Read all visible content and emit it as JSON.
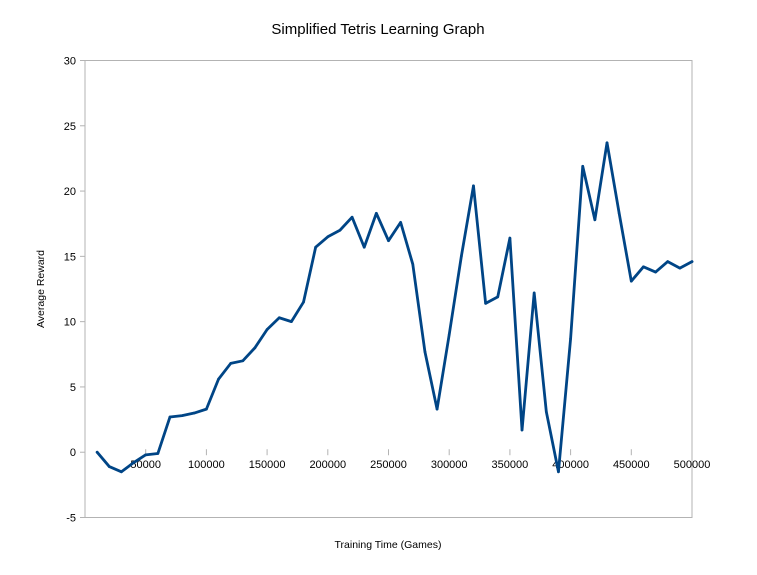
{
  "chart_data": {
    "type": "line",
    "title": "Simplified Tetris Learning Graph",
    "xlabel": "Training Time (Games)",
    "ylabel": "Average Reward",
    "xlim": [
      0,
      500000
    ],
    "ylim": [
      -5,
      30
    ],
    "x_ticks": [
      50000,
      100000,
      150000,
      200000,
      250000,
      300000,
      350000,
      400000,
      450000,
      500000
    ],
    "y_ticks": [
      -5,
      0,
      5,
      10,
      15,
      20,
      25,
      30
    ],
    "grid": false,
    "legend": "none",
    "line_color": "#004586",
    "series": [
      {
        "x": [
          10000,
          20000,
          30000,
          40000,
          50000,
          60000,
          70000,
          80000,
          90000,
          100000,
          110000,
          120000,
          130000,
          140000,
          150000,
          160000,
          170000,
          180000,
          190000,
          200000,
          210000,
          220000,
          230000,
          240000,
          250000,
          260000,
          270000,
          280000,
          290000,
          300000,
          310000,
          320000,
          330000,
          340000,
          350000,
          360000,
          370000,
          380000,
          390000,
          400000,
          410000,
          420000,
          430000,
          440000,
          450000,
          460000,
          470000,
          480000,
          490000,
          500000
        ],
        "values": [
          0,
          -1.1,
          -1.5,
          -0.8,
          -0.2,
          -0.1,
          2.7,
          2.8,
          3.0,
          3.3,
          5.6,
          6.8,
          7.0,
          8.0,
          9.4,
          10.3,
          10.0,
          11.5,
          15.7,
          16.5,
          17.0,
          18.0,
          15.7,
          18.3,
          16.2,
          17.6,
          14.4,
          7.7,
          3.3,
          9.0,
          15.0,
          20.4,
          11.4,
          11.9,
          16.4,
          1.7,
          12.2,
          3.1,
          -1.5,
          8.7,
          21.9,
          17.8,
          23.7,
          18.3,
          13.1,
          14.2,
          13.8,
          14.6,
          14.1,
          14.6
        ]
      }
    ]
  }
}
